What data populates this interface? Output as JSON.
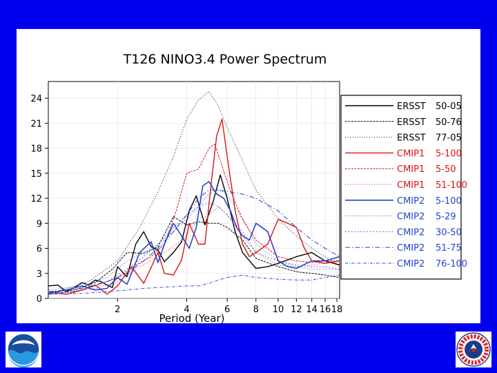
{
  "colors": {
    "background": "#0000ee",
    "panel": "#ffffff",
    "black": "#000000",
    "red": "#dd1111",
    "blue": "#2244cc"
  },
  "chart_data": {
    "type": "line",
    "title": "T126 NINO3.4 Power Spectrum",
    "xlabel": "Period (Year)",
    "ylabel": "",
    "x_scale": "log",
    "xlim": [
      1.0,
      18.5
    ],
    "ylim": [
      0,
      26
    ],
    "x_ticks": [
      2,
      4,
      6,
      8,
      10,
      12,
      14,
      16,
      18
    ],
    "x_tick_labels": [
      "2",
      "4",
      "6",
      "8",
      "10",
      "12",
      "14",
      "16",
      "18"
    ],
    "y_ticks": [
      0,
      3,
      6,
      9,
      12,
      15,
      18,
      21,
      24
    ],
    "y_tick_labels": [
      "0",
      "3",
      "6",
      "9",
      "12",
      "15",
      "18",
      "21",
      "24"
    ],
    "legend_position": "right",
    "series": [
      {
        "name": "ERSST",
        "period": "50-05",
        "color": "black",
        "style": "solid",
        "width": 1.4,
        "x": [
          1.0,
          1.1,
          1.2,
          1.3,
          1.4,
          1.5,
          1.6,
          1.7,
          1.8,
          1.9,
          2.0,
          2.2,
          2.4,
          2.6,
          2.8,
          3.0,
          3.2,
          3.5,
          3.8,
          4.1,
          4.4,
          4.8,
          5.2,
          5.6,
          6.0,
          6.5,
          7.0,
          7.5,
          8.0,
          9.0,
          10.0,
          12.0,
          14.0,
          16.0,
          18.5
        ],
        "y": [
          1.5,
          1.6,
          0.8,
          1.3,
          1.9,
          1.6,
          2.2,
          2.0,
          1.6,
          1.3,
          3.8,
          2.6,
          6.5,
          8.0,
          6.2,
          5.8,
          4.4,
          5.5,
          6.8,
          10.5,
          12.3,
          8.8,
          11.5,
          14.8,
          12.0,
          8.0,
          5.5,
          4.5,
          3.6,
          3.8,
          4.2,
          5.0,
          5.5,
          4.5,
          4.0
        ]
      },
      {
        "name": "ERSST",
        "period": "50-76",
        "color": "black",
        "style": "dashed",
        "width": 1.0,
        "x": [
          1.0,
          1.3,
          1.6,
          1.9,
          2.2,
          2.6,
          3.0,
          3.5,
          4.0,
          4.5,
          5.0,
          5.5,
          6.0,
          7.0,
          8.0,
          10.0,
          12.0,
          14.0,
          16.0,
          18.5
        ],
        "y": [
          0.8,
          1.0,
          1.9,
          3.5,
          5.5,
          5.4,
          6.2,
          9.8,
          8.8,
          9.2,
          9.0,
          9.0,
          8.5,
          7.0,
          4.8,
          3.8,
          3.2,
          3.0,
          2.8,
          2.5
        ]
      },
      {
        "name": "ERSST",
        "period": "77-05",
        "color": "black",
        "style": "dotted",
        "width": 1.0,
        "x": [
          1.0,
          1.5,
          2.0,
          2.5,
          3.0,
          3.5,
          4.0,
          4.5,
          5.0,
          5.5,
          6.0,
          7.0,
          8.0,
          10.0,
          12.0,
          14.0,
          16.0,
          18.5
        ],
        "y": [
          0.5,
          2.0,
          4.5,
          8.5,
          12.8,
          17.0,
          21.5,
          23.8,
          24.8,
          23.0,
          20.5,
          16.5,
          13.0,
          9.5,
          7.5,
          6.0,
          5.0,
          4.0
        ]
      },
      {
        "name": "CMIP1",
        "period": "5-100",
        "color": "red",
        "style": "solid",
        "width": 1.4,
        "x": [
          1.0,
          1.2,
          1.4,
          1.6,
          1.8,
          2.0,
          2.3,
          2.6,
          3.0,
          3.2,
          3.5,
          3.8,
          4.1,
          4.5,
          4.8,
          5.1,
          5.4,
          5.7,
          6.0,
          6.5,
          7.0,
          7.5,
          8.0,
          9.0,
          10.0,
          11.0,
          12.0,
          13.0,
          14.0,
          16.0,
          18.5
        ],
        "y": [
          0.8,
          0.5,
          1.0,
          1.6,
          0.5,
          1.5,
          3.8,
          1.8,
          5.5,
          3.0,
          2.8,
          4.6,
          9.0,
          6.5,
          6.5,
          13.5,
          19.5,
          21.5,
          17.0,
          10.5,
          6.5,
          5.0,
          5.5,
          6.5,
          9.5,
          9.0,
          8.5,
          6.0,
          4.5,
          4.2,
          4.5
        ]
      },
      {
        "name": "CMIP1",
        "period": "5-50",
        "color": "red",
        "style": "dashed",
        "width": 1.0,
        "x": [
          1.0,
          1.3,
          1.6,
          2.0,
          2.4,
          2.8,
          3.2,
          3.6,
          4.0,
          4.5,
          5.0,
          5.3,
          5.6,
          6.0,
          6.5,
          7.0,
          8.0,
          10.0,
          12.0,
          14.0,
          16.0,
          18.5
        ],
        "y": [
          0.6,
          0.8,
          1.5,
          2.5,
          4.0,
          5.0,
          6.5,
          10.5,
          15.0,
          15.5,
          18.0,
          18.5,
          16.5,
          14.0,
          11.5,
          9.5,
          7.0,
          5.0,
          4.5,
          4.3,
          4.5,
          4.5
        ]
      },
      {
        "name": "CMIP1",
        "period": "51-100",
        "color": "red",
        "style": "dotted",
        "width": 1.0,
        "x": [
          1.0,
          1.3,
          1.6,
          2.0,
          2.4,
          2.8,
          3.2,
          3.6,
          4.0,
          4.5,
          5.0,
          5.5,
          6.0,
          7.0,
          8.0,
          10.0,
          12.0,
          14.0,
          16.0,
          18.5
        ],
        "y": [
          0.5,
          0.8,
          1.2,
          2.0,
          3.5,
          4.5,
          5.5,
          6.5,
          7.5,
          9.5,
          10.0,
          11.0,
          10.0,
          7.5,
          5.5,
          4.0,
          3.8,
          4.0,
          4.3,
          4.5
        ]
      },
      {
        "name": "CMIP2",
        "period": "5-100",
        "color": "blue",
        "style": "solid",
        "width": 1.6,
        "x": [
          1.0,
          1.2,
          1.4,
          1.6,
          1.8,
          2.0,
          2.2,
          2.5,
          2.8,
          3.0,
          3.2,
          3.5,
          3.8,
          4.1,
          4.4,
          4.7,
          5.0,
          5.4,
          5.8,
          6.2,
          6.6,
          7.0,
          7.5,
          8.0,
          8.5,
          9.0,
          10.0,
          11.0,
          12.0,
          14.0,
          16.0,
          18.5
        ],
        "y": [
          0.6,
          1.0,
          1.5,
          1.0,
          1.2,
          2.5,
          1.7,
          5.5,
          6.8,
          4.3,
          6.5,
          9.0,
          7.5,
          6.0,
          8.5,
          13.5,
          14.0,
          12.5,
          12.0,
          10.5,
          8.5,
          7.5,
          7.0,
          9.0,
          8.5,
          8.0,
          4.5,
          3.8,
          3.6,
          4.5,
          4.5,
          5.0
        ]
      },
      {
        "name": "CMIP2",
        "period": "5-29",
        "color": "blue",
        "style": "dotted",
        "width": 1.0,
        "x": [
          1.0,
          1.4,
          1.8,
          2.2,
          2.6,
          3.0,
          3.5,
          4.0,
          4.5,
          5.0,
          5.5,
          6.0,
          7.0,
          8.0,
          10.0,
          12.0,
          14.0,
          16.0,
          18.5
        ],
        "y": [
          1.0,
          1.5,
          2.5,
          4.5,
          5.5,
          6.5,
          8.0,
          9.5,
          11.0,
          12.5,
          13.0,
          12.5,
          9.5,
          6.5,
          4.5,
          3.8,
          3.5,
          3.5,
          3.5
        ]
      },
      {
        "name": "CMIP2",
        "period": "30-50",
        "color": "blue",
        "style": "dotted2",
        "width": 1.0,
        "x": [
          1.0,
          1.4,
          1.8,
          2.2,
          2.6,
          3.0,
          3.5,
          4.0,
          4.5,
          5.0,
          5.5,
          6.0,
          7.0,
          8.0,
          10.0,
          12.0,
          14.0,
          16.0,
          18.5
        ],
        "y": [
          0.5,
          1.0,
          2.0,
          3.5,
          5.0,
          6.5,
          8.5,
          10.0,
          11.0,
          11.5,
          11.0,
          10.0,
          8.0,
          5.5,
          4.5,
          4.0,
          3.8,
          3.8,
          3.5
        ]
      },
      {
        "name": "CMIP2",
        "period": "51-75",
        "color": "blue",
        "style": "dashdot",
        "width": 1.0,
        "x": [
          1.0,
          1.4,
          1.8,
          2.2,
          2.6,
          3.0,
          3.5,
          4.0,
          4.5,
          5.0,
          5.5,
          6.0,
          7.0,
          8.0,
          10.0,
          12.0,
          14.0,
          16.0,
          18.5
        ],
        "y": [
          0.8,
          1.2,
          2.0,
          3.0,
          4.5,
          6.0,
          8.0,
          10.0,
          12.0,
          13.0,
          13.0,
          12.8,
          12.5,
          12.0,
          10.5,
          8.5,
          7.0,
          6.0,
          5.0
        ]
      },
      {
        "name": "CMIP2",
        "period": "76-100",
        "color": "blue",
        "style": "dashdot2",
        "width": 1.0,
        "x": [
          1.0,
          1.4,
          1.8,
          2.2,
          2.6,
          3.0,
          3.5,
          4.0,
          4.5,
          5.0,
          5.5,
          6.0,
          7.0,
          8.0,
          10.0,
          12.0,
          14.0,
          16.0,
          18.5
        ],
        "y": [
          0.5,
          0.6,
          0.8,
          1.0,
          1.2,
          1.3,
          1.4,
          1.5,
          1.5,
          1.8,
          2.2,
          2.5,
          2.8,
          2.5,
          2.3,
          2.2,
          2.2,
          2.5,
          2.8
        ]
      }
    ]
  }
}
